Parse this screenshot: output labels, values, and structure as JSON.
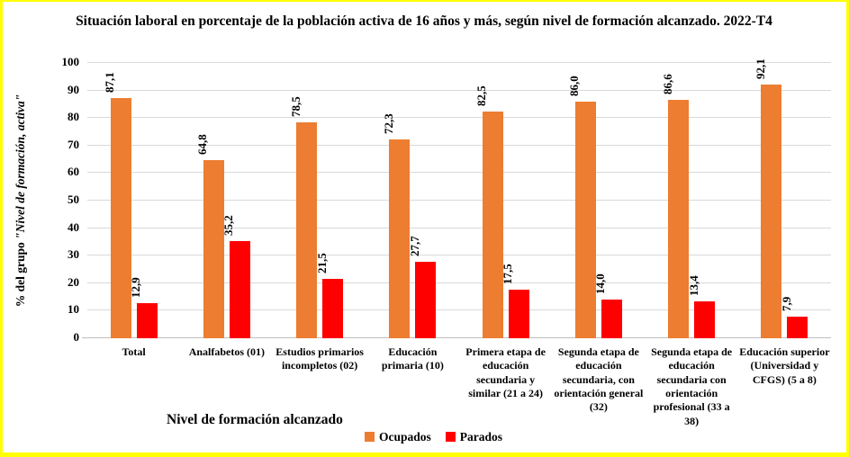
{
  "chart_data": {
    "type": "bar",
    "title": "Situación laboral en porcentaje de la población activa de 16 años y más, según nivel de formación alcanzado. 2022-T4",
    "xlabel": "Nivel de formación alcanzado",
    "ylabel_prefix": "% del grupo ",
    "ylabel_quoted": "\"Nivel de formación, activa\"",
    "categories": [
      "Total",
      "Analfabetos (01)",
      "Estudios primarios incompletos (02)",
      "Educación primaria (10)",
      "Primera etapa de educación secundaria y similar (21 a 24)",
      "Segunda etapa de educación secundaria, con orientación general (32)",
      "Segunda etapa de educación secundaria con orientación profesional (33 a 38)",
      "Educación superior (Universidad y CFGS) (5 a 8)"
    ],
    "series": [
      {
        "name": "Ocupados",
        "color": "#ED7D31",
        "values": [
          87.1,
          64.8,
          78.5,
          72.3,
          82.5,
          86.0,
          86.6,
          92.1
        ]
      },
      {
        "name": "Parados",
        "color": "#FF0000",
        "values": [
          12.9,
          35.2,
          21.5,
          27.7,
          17.5,
          14.0,
          13.4,
          7.9
        ]
      }
    ],
    "ylim": [
      0,
      100
    ],
    "yticks": [
      0,
      10,
      20,
      30,
      40,
      50,
      60,
      70,
      80,
      90,
      100
    ],
    "grid": true,
    "legend_position": "bottom",
    "decimal_separator": ",",
    "colors": {
      "gridline": "#D9D9D9",
      "baseline": "#BFBFBF",
      "frame_border": "#FFFF00",
      "text": "#000000",
      "background": "#FFFFFF"
    }
  }
}
